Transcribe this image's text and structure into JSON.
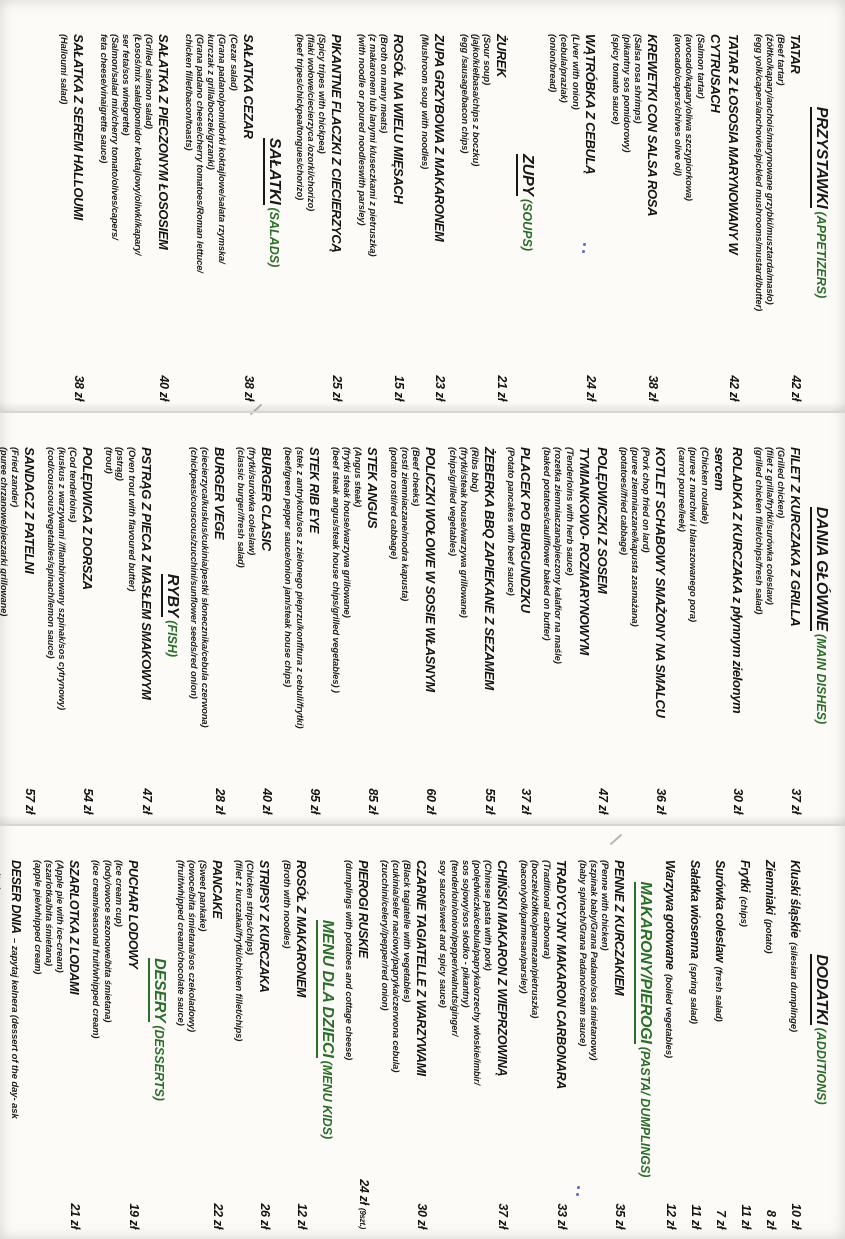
{
  "menu": {
    "colors": {
      "accent_green": "#2a6e28",
      "text": "#141414",
      "paper": "#fcfbf8"
    },
    "pages": [
      {
        "sections": [
          {
            "title": "PRZYSTAWKI",
            "title_en": "(APPETIZERS)",
            "green_title": false,
            "items": [
              {
                "name": "TATAR",
                "desc": [
                  "(Beef tartar)",
                  "(żółtko/kapary/anchois/marynowane grzybki/musztarda/masło)",
                  "(egg yolk/capers/anchovies/pickled mushrooms/mustard/butter)"
                ],
                "price": "42 zł"
              },
              {
                "name": "TATAR Z ŁOSOSIA MARYNOWANY W CYTRUSACH",
                "desc": [
                  "(Salmon tartar)",
                  "(avocado/kapary/oliwa szczypiorkowa)",
                  "(avocado/capers/chives olive oil)"
                ],
                "price": "42 zł"
              },
              {
                "name": "KREWETKI CON SALSA ROSA",
                "desc": [
                  "(Salsa rosa shrimps)",
                  "(pikantny sos pomidorowy)",
                  "(spicy tomato sauce)"
                ],
                "price": "38 zł"
              },
              {
                "name": "WĄTRÓBKA Z CEBULĄ",
                "desc": [
                  "(Liver with onion)",
                  "(cebula/praziak)",
                  "(onion/bread)"
                ],
                "price": "24 zł"
              }
            ]
          },
          {
            "title": "ZUPY",
            "title_en": "(SOUPS)",
            "green_title": false,
            "items": [
              {
                "name": "ŻUREK",
                "desc": [
                  "(Sour soup)",
                  "(jajko/kiełbasa/chips z boczku)",
                  "(egg /sausage/bacon chips)"
                ],
                "price": "21 zł"
              },
              {
                "name": "ZUPA GRZYBOWA Z MAKARONEM",
                "desc": [
                  "(Mushroom soup with noodles)"
                ],
                "price": "23 zł"
              },
              {
                "name": "ROSÓŁ NA WIELU MIĘSACH",
                "desc": [
                  "(Broth on many meats)",
                  "(z makaronem lub lanymi kluseczkami z pietruszką)",
                  "(with noodle or poured noodleswith parsley)"
                ],
                "price": "15 zł"
              },
              {
                "name": "PIKANTNE FLACZKI Z CIECIERZYCĄ",
                "desc": [
                  "(Spicy tripes with chickpea)",
                  "(flaki wołowe/ciecierzyca /ozorki/chorizo)",
                  "(beef tripes/chickpea/tongues/chorizo)"
                ],
                "price": "25 zł"
              }
            ]
          },
          {
            "title": "SAŁATKI",
            "title_en": "(SALADS)",
            "green_title": false,
            "items": [
              {
                "name": "SAŁATKA CEZAR",
                "desc": [
                  "(Cezar salad)",
                  "(Grana padano/pomidorki koktajlowe/sałata rzymska/",
                  "kurczak z grilla/boczek/grzanki)",
                  "(Grana padano cheese/cherry tomatoes/Roman lettuce/",
                  "chicken fillet/bacon/toasts)"
                ],
                "price": "38 zł"
              },
              {
                "name": "SAŁATKA Z PIECZONYM ŁOSOSIEM",
                "desc": [
                  "(Grilled salmon salad)",
                  "(Łosoś/mix sałat/pomidor koktajlowy/oliwki/kapary/",
                  "ser feta/sos winegrette)",
                  "(Salmon/salad mix/cherry tomato/olives/capers/",
                  "feta cheese/vinaigrette sauce)"
                ],
                "price": "40 zł"
              },
              {
                "name": "SAŁATKA Z SEREM HALLOUMI",
                "desc": [
                  "(Halloumi salad)"
                ],
                "price": "38 zł"
              }
            ]
          }
        ]
      },
      {
        "sections": [
          {
            "title": "DANIA GŁÓWNE",
            "title_en": "(MAIN DISHES)",
            "green_title": false,
            "items": [
              {
                "name": "FILET Z KURCZAKA Z GRILLA",
                "desc": [
                  "(Grilled chicken)",
                  "(filet z grilla/frytki/surówka coleslaw)",
                  "(grilled chicken fillet/chips/fresh salad)"
                ],
                "price": "37 zł"
              },
              {
                "name": "ROLADKA Z KURCZAKA z płynnym zielonym sercem",
                "desc": [
                  "(Chicken roulade)",
                  "(puree z marchwi i blanszowanego pora)",
                  "(carrot pouree/leek)"
                ],
                "price": "30 zł"
              },
              {
                "name": "KOTLET SCHABOWY SMAŻONY NA SMALCU",
                "desc": [
                  "(Pork chop fried on lard)",
                  "(puree ziemniaczane/kapusta zasmażana)",
                  "(potatoes//fried cabbage)"
                ],
                "price": "36 zł"
              },
              {
                "name": "POLĘDWICZKI Z SOSEM",
                "name2": "TYMIANKOWO- ROZMARYNOWYM",
                "desc": [
                  "(Tenderloins with herb sauce)",
                  "(rozetka ziemniaczana/pieczony kalafior na maśle)",
                  "(baked potatoes/cauliflower baked on butter)"
                ],
                "price": "47 zł"
              },
              {
                "name": "PLACEK PO BURGUNDZKU",
                "desc": [
                  "(Potato pancakes with beef sauce)"
                ],
                "price": "37 zł"
              },
              {
                "name": "ŻEBERKA BBQ ZAPIEKANE Z SEZAMEM",
                "desc": [
                  "(Ribs bbq)",
                  "(frytki/steak house/warzywa grillowane)",
                  "(chips/grilled vegetables)"
                ],
                "price": "55 zł"
              },
              {
                "name": "POLICZKI WOŁOWE W SOSIE WŁASNYM",
                "desc": [
                  "(Beef cheeks)",
                  "(rosti ziemniaczane/modra kapusta)",
                  "(potato rosti/red cabbage)"
                ],
                "price": "60 zł"
              },
              {
                "name": "STEK ANGUS",
                "desc": [
                  "(Angus steak)",
                  "(frytki steak house/warzywa grillowane)",
                  "(beef steak angus/steak house chips/grilled vegetables) )"
                ],
                "price": "85 zł"
              },
              {
                "name": "STEK RIB EYE",
                "desc": [
                  "(stek z antrykotu/sos z zielonego pieprzu/konfitura z cebuli/frytki)",
                  "(beef/green pepper sauce/onion jam/steak house chips)"
                ],
                "price": "95 zł"
              },
              {
                "name": "BURGER CLASIC",
                "desc": [
                  "(frytki/surówka coleslaw)",
                  "(classic burger//fresh salad)"
                ],
                "price": "40 zł"
              },
              {
                "name": "BURGER VEGE",
                "desc": [
                  "(ciecierzyca/kuskus/cukinia/pestki słonecznika/cebula czerwona)",
                  "(chickpeas/couscous/zucchini/sunflower seeds/red onion)"
                ],
                "price": "28 zł"
              }
            ]
          },
          {
            "title": "RYBY",
            "title_en": "(FISH)",
            "green_title": false,
            "items": [
              {
                "name": "PSTRĄG Z PIECA Z MASŁEM SMAKOWYM",
                "desc": [
                  "(Oven trout with flavoured butter)",
                  "(pstrąg)",
                  "(trout)"
                ],
                "price": "47 zł"
              },
              {
                "name": "POLĘDWICA Z DORSZA",
                "desc": [
                  "(Cod tenderloins)",
                  "(kuskus z warzywami //flambirowany szpinak/sos cytrynowy)",
                  "(cod/couscous/vegetables/spinach/lemon sauce)"
                ],
                "price": "54 zł"
              },
              {
                "name": "SANDACZ Z PATELNI",
                "desc": [
                  "(Fried zander)",
                  "(puree chrzanowe/pieczarki grillowane)",
                  "(horseradish/grilled mushrooms)"
                ],
                "price": "57 zł"
              }
            ]
          }
        ]
      },
      {
        "sections": [
          {
            "title": "DODATKI",
            "title_en": "(ADDITIONS)",
            "green_title": false,
            "items": [
              {
                "name": "Kluski śląskie",
                "inline": "(silesian dumplinge)",
                "price": "10 zł"
              },
              {
                "name": "Ziemniaki",
                "inline": "(potato)",
                "price": "8 zł"
              },
              {
                "name": "Frytki",
                "inline": "(chips)",
                "price": "11 zł"
              },
              {
                "name": "Surówka coleslaw",
                "inline": "(fresh salad)",
                "price": "7 zł"
              },
              {
                "name": "Sałatka wiosenna",
                "inline": "(spring salad)",
                "price": "11 zł"
              },
              {
                "name": "Warzywa gotowane",
                "inline": "(boiled vegetables)",
                "price": "12 zł"
              }
            ]
          },
          {
            "title": "MAKARONY/PIEROGI",
            "title_en": "(PASTA/ DUMPLINGS)",
            "green_title": true,
            "items": [
              {
                "name": "PENNE Z KURCZAKIEM",
                "desc": [
                  "(Penne with chicken)",
                  "(szpinak baby/Grana Padano/sos śmietanowy)",
                  "(baby spinach/Grana Padano/cream sauce)"
                ],
                "price": "35 zł"
              },
              {
                "name": "TRADYCYJNY MAKARON CARBONARA",
                "desc": [
                  "(Traditional carbonara)",
                  "(boczek/żółtko/parmezan/pietruszka)",
                  "(bacon/yolk/parmesan/parsley)"
                ],
                "price": "33 zł"
              },
              {
                "name": "CHIŃSKI MAKARON Z WIEPRZOWINĄ",
                "desc": [
                  "(Chinese pasta with pork)",
                  "(polędwiczka/cebula/papryka/orzechy włoskie/imbir/",
                  "sos sojowy/sos słodko - pikantny)",
                  "(tenderloin/onion/pepper/walnuts/ginger/",
                  "soy sauce/sweet and spicy sauce)"
                ],
                "price": "37 zł"
              },
              {
                "name": "CZARNE TAGIATELLE Z WARZYWAMI",
                "desc": [
                  "(Black tagiatelle with vegetables)",
                  "(cukinia/seler naciowy/papryka/czerwona cebula)",
                  "(zucchini/celery//pepper/red onion)"
                ],
                "price": "30 zł"
              },
              {
                "name": "PIEROGI RUSKIE",
                "desc": [
                  "(dumplings with potatoes and cottage cheese)"
                ],
                "price": "24 zł",
                "price_note": "(9szt.)"
              }
            ]
          },
          {
            "title": "MENU DLA DZIECI",
            "title_en": "(MENU KIDS)",
            "green_title": true,
            "items": [
              {
                "name": "ROSÓŁ Z MAKARONEM",
                "desc": [
                  "(Broth with noodles)"
                ],
                "price": "12 zł"
              },
              {
                "name": "STRIPSY Z KURCZAKA",
                "desc": [
                  "(Chicken strips/chips)",
                  "(filet z kurczaka//frytki/chicken fillet/chips)"
                ],
                "price": "26 zł"
              },
              {
                "name": "PANCAKE",
                "desc": [
                  "(Sweet pankake)",
                  "(owoce/bita śmietana/sos czekoladowy)",
                  "(fruit/whipped cream/chocolate sauce)"
                ],
                "price": "22 zł"
              }
            ]
          },
          {
            "title": "DESERY",
            "title_en": "(DESSERTS)",
            "green_title": true,
            "items": [
              {
                "name": "PUCHAR LODOWY",
                "desc": [
                  "(Ice cream cup)",
                  "(lody/owoce sezonowe/bita śmietana)",
                  "(ice cream/seasonal fruit/whipped cream)"
                ],
                "price": "19 zł"
              },
              {
                "name": "SZARLOTKA Z LODAMI",
                "desc": [
                  "(Apple pie with ice-cream)",
                  "(szarlotka/bita śmietana)",
                  "(apple pie/whipped cream)"
                ],
                "price": "21 zł"
              },
              {
                "name": "DESER DNIA",
                "inline": "– zapytaj kelnera (dessert of the day- ask waiter)"
              }
            ]
          }
        ]
      }
    ]
  }
}
